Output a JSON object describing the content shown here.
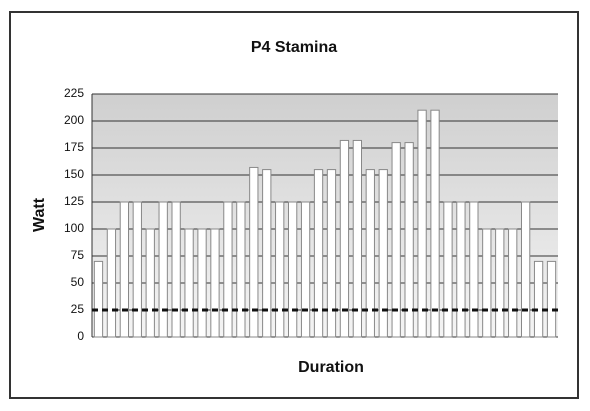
{
  "chart_data": {
    "type": "bar",
    "title": "P4 Stamina",
    "x_label": "Duration",
    "y_label": "Watt",
    "categories": [
      null,
      null,
      null,
      null,
      null,
      null,
      null,
      null,
      null,
      null,
      null,
      null,
      null,
      null,
      null,
      null,
      null,
      null,
      null,
      null,
      null,
      null,
      null,
      null,
      null,
      null,
      null,
      null,
      null,
      null,
      null,
      null,
      null,
      null,
      null,
      null
    ],
    "values": [
      70,
      100,
      125,
      125,
      100,
      125,
      125,
      100,
      100,
      100,
      125,
      125,
      157,
      155,
      125,
      125,
      125,
      155,
      155,
      182,
      182,
      155,
      155,
      180,
      180,
      210,
      210,
      125,
      125,
      125,
      100,
      100,
      100,
      125,
      70,
      70
    ],
    "color": "#ffffff",
    "reference_line": 25,
    "ylim": [
      0,
      225
    ],
    "yticks": [
      0,
      25,
      50,
      75,
      100,
      125,
      150,
      175,
      200,
      225
    ],
    "grid": true
  }
}
